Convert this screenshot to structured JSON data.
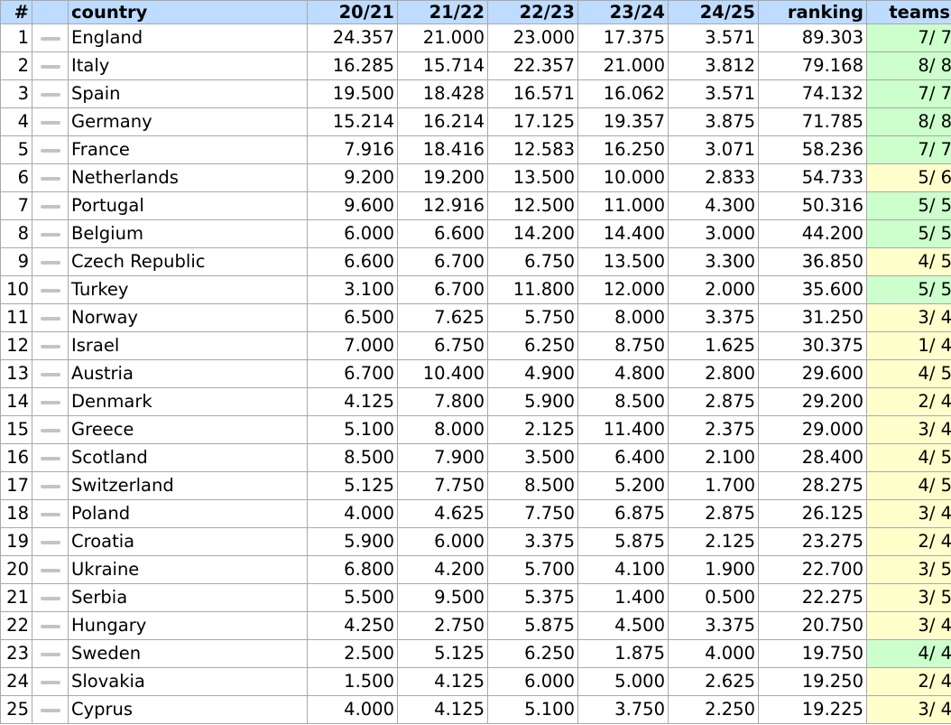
{
  "headers": {
    "rank": "#",
    "icon": "",
    "country": "country",
    "s1": "20/21",
    "s2": "21/22",
    "s3": "22/23",
    "s4": "23/24",
    "s5": "24/25",
    "ranking": "ranking",
    "teams": "teams"
  },
  "colors": {
    "header_bg": "#bddcff",
    "teams_complete": "#ccffcc",
    "teams_partial": "#ffffcc"
  },
  "row_icon": "dash-icon",
  "rows": [
    {
      "rank": "1",
      "country": "England",
      "s1": "24.357",
      "s2": "21.000",
      "s3": "23.000",
      "s4": "17.375",
      "s5": "3.571",
      "ranking": "89.303",
      "teams": "7/ 7"
    },
    {
      "rank": "2",
      "country": "Italy",
      "s1": "16.285",
      "s2": "15.714",
      "s3": "22.357",
      "s4": "21.000",
      "s5": "3.812",
      "ranking": "79.168",
      "teams": "8/ 8"
    },
    {
      "rank": "3",
      "country": "Spain",
      "s1": "19.500",
      "s2": "18.428",
      "s3": "16.571",
      "s4": "16.062",
      "s5": "3.571",
      "ranking": "74.132",
      "teams": "7/ 7"
    },
    {
      "rank": "4",
      "country": "Germany",
      "s1": "15.214",
      "s2": "16.214",
      "s3": "17.125",
      "s4": "19.357",
      "s5": "3.875",
      "ranking": "71.785",
      "teams": "8/ 8"
    },
    {
      "rank": "5",
      "country": "France",
      "s1": "7.916",
      "s2": "18.416",
      "s3": "12.583",
      "s4": "16.250",
      "s5": "3.071",
      "ranking": "58.236",
      "teams": "7/ 7"
    },
    {
      "rank": "6",
      "country": "Netherlands",
      "s1": "9.200",
      "s2": "19.200",
      "s3": "13.500",
      "s4": "10.000",
      "s5": "2.833",
      "ranking": "54.733",
      "teams": "5/ 6"
    },
    {
      "rank": "7",
      "country": "Portugal",
      "s1": "9.600",
      "s2": "12.916",
      "s3": "12.500",
      "s4": "11.000",
      "s5": "4.300",
      "ranking": "50.316",
      "teams": "5/ 5"
    },
    {
      "rank": "8",
      "country": "Belgium",
      "s1": "6.000",
      "s2": "6.600",
      "s3": "14.200",
      "s4": "14.400",
      "s5": "3.000",
      "ranking": "44.200",
      "teams": "5/ 5"
    },
    {
      "rank": "9",
      "country": "Czech Republic",
      "s1": "6.600",
      "s2": "6.700",
      "s3": "6.750",
      "s4": "13.500",
      "s5": "3.300",
      "ranking": "36.850",
      "teams": "4/ 5"
    },
    {
      "rank": "10",
      "country": "Turkey",
      "s1": "3.100",
      "s2": "6.700",
      "s3": "11.800",
      "s4": "12.000",
      "s5": "2.000",
      "ranking": "35.600",
      "teams": "5/ 5"
    },
    {
      "rank": "11",
      "country": "Norway",
      "s1": "6.500",
      "s2": "7.625",
      "s3": "5.750",
      "s4": "8.000",
      "s5": "3.375",
      "ranking": "31.250",
      "teams": "3/ 4"
    },
    {
      "rank": "12",
      "country": "Israel",
      "s1": "7.000",
      "s2": "6.750",
      "s3": "6.250",
      "s4": "8.750",
      "s5": "1.625",
      "ranking": "30.375",
      "teams": "1/ 4"
    },
    {
      "rank": "13",
      "country": "Austria",
      "s1": "6.700",
      "s2": "10.400",
      "s3": "4.900",
      "s4": "4.800",
      "s5": "2.800",
      "ranking": "29.600",
      "teams": "4/ 5"
    },
    {
      "rank": "14",
      "country": "Denmark",
      "s1": "4.125",
      "s2": "7.800",
      "s3": "5.900",
      "s4": "8.500",
      "s5": "2.875",
      "ranking": "29.200",
      "teams": "2/ 4"
    },
    {
      "rank": "15",
      "country": "Greece",
      "s1": "5.100",
      "s2": "8.000",
      "s3": "2.125",
      "s4": "11.400",
      "s5": "2.375",
      "ranking": "29.000",
      "teams": "3/ 4"
    },
    {
      "rank": "16",
      "country": "Scotland",
      "s1": "8.500",
      "s2": "7.900",
      "s3": "3.500",
      "s4": "6.400",
      "s5": "2.100",
      "ranking": "28.400",
      "teams": "4/ 5"
    },
    {
      "rank": "17",
      "country": "Switzerland",
      "s1": "5.125",
      "s2": "7.750",
      "s3": "8.500",
      "s4": "5.200",
      "s5": "1.700",
      "ranking": "28.275",
      "teams": "4/ 5"
    },
    {
      "rank": "18",
      "country": "Poland",
      "s1": "4.000",
      "s2": "4.625",
      "s3": "7.750",
      "s4": "6.875",
      "s5": "2.875",
      "ranking": "26.125",
      "teams": "3/ 4"
    },
    {
      "rank": "19",
      "country": "Croatia",
      "s1": "5.900",
      "s2": "6.000",
      "s3": "3.375",
      "s4": "5.875",
      "s5": "2.125",
      "ranking": "23.275",
      "teams": "2/ 4"
    },
    {
      "rank": "20",
      "country": "Ukraine",
      "s1": "6.800",
      "s2": "4.200",
      "s3": "5.700",
      "s4": "4.100",
      "s5": "1.900",
      "ranking": "22.700",
      "teams": "3/ 5"
    },
    {
      "rank": "21",
      "country": "Serbia",
      "s1": "5.500",
      "s2": "9.500",
      "s3": "5.375",
      "s4": "1.400",
      "s5": "0.500",
      "ranking": "22.275",
      "teams": "3/ 5"
    },
    {
      "rank": "22",
      "country": "Hungary",
      "s1": "4.250",
      "s2": "2.750",
      "s3": "5.875",
      "s4": "4.500",
      "s5": "3.375",
      "ranking": "20.750",
      "teams": "3/ 4"
    },
    {
      "rank": "23",
      "country": "Sweden",
      "s1": "2.500",
      "s2": "5.125",
      "s3": "6.250",
      "s4": "1.875",
      "s5": "4.000",
      "ranking": "19.750",
      "teams": "4/ 4"
    },
    {
      "rank": "24",
      "country": "Slovakia",
      "s1": "1.500",
      "s2": "4.125",
      "s3": "6.000",
      "s4": "5.000",
      "s5": "2.625",
      "ranking": "19.250",
      "teams": "2/ 4"
    },
    {
      "rank": "25",
      "country": "Cyprus",
      "s1": "4.000",
      "s2": "4.125",
      "s3": "5.100",
      "s4": "3.750",
      "s5": "2.250",
      "ranking": "19.225",
      "teams": "3/ 4"
    }
  ]
}
